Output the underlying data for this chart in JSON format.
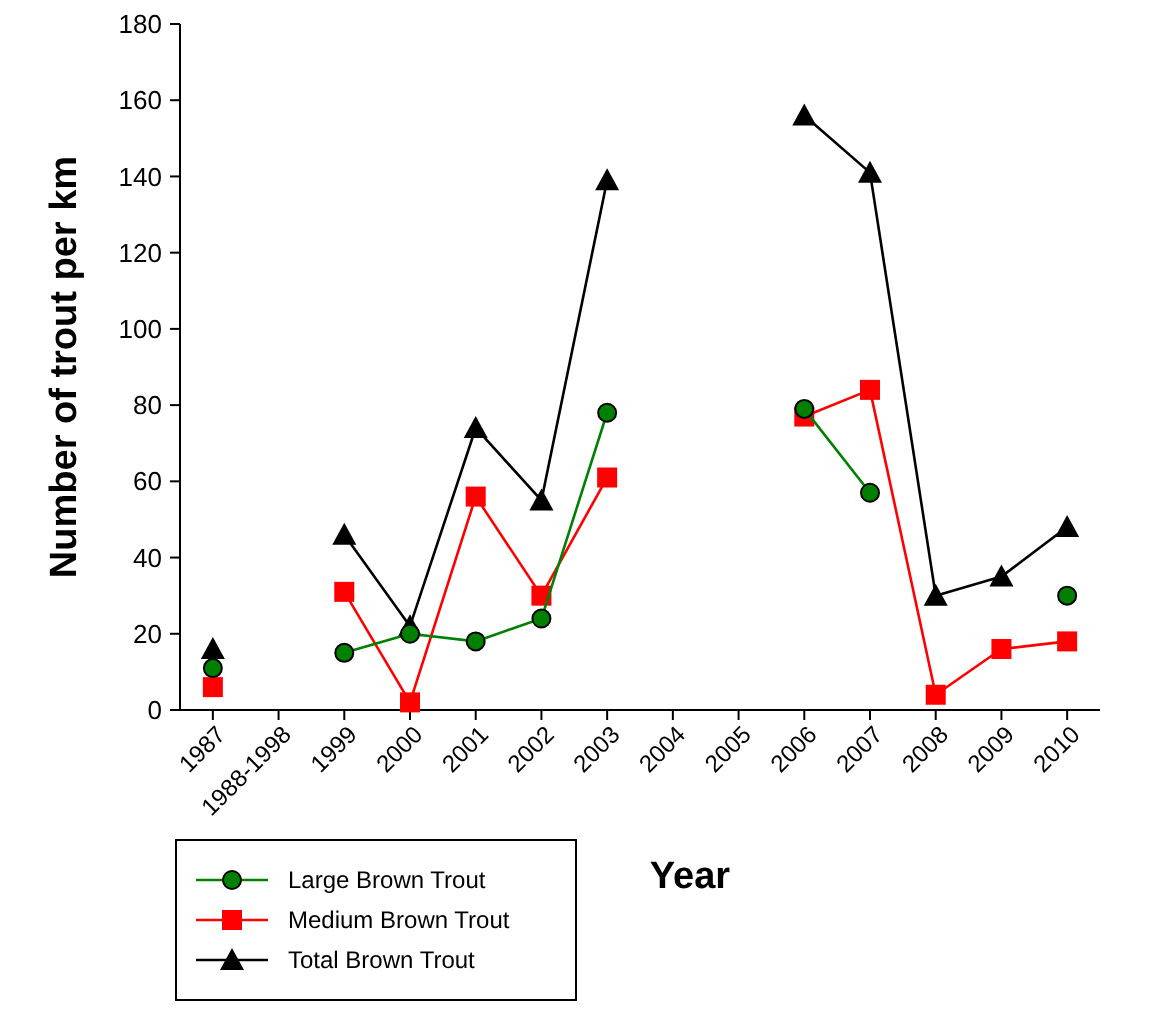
{
  "chart_data": {
    "type": "line",
    "xlabel": "Year",
    "ylabel": "Number of trout per km",
    "categories": [
      "1987",
      "1988-1998",
      "1999",
      "2000",
      "2001",
      "2002",
      "2003",
      "2004",
      "2005",
      "2006",
      "2007",
      "2008",
      "2009",
      "2010"
    ],
    "series": [
      {
        "name": "Large Brown Trout",
        "color": "#008000",
        "marker": "circle",
        "values": [
          11,
          null,
          15,
          20,
          18,
          24,
          78,
          null,
          null,
          79,
          57,
          null,
          null,
          30
        ]
      },
      {
        "name": "Medium Brown Trout",
        "color": "#ff0000",
        "marker": "square",
        "values": [
          6,
          null,
          31,
          2,
          56,
          30,
          61,
          null,
          null,
          77,
          84,
          4,
          16,
          18
        ]
      },
      {
        "name": "Total Brown Trout",
        "color": "#000000",
        "marker": "triangle",
        "values": [
          16,
          null,
          46,
          22,
          74,
          55,
          139,
          null,
          null,
          156,
          141,
          30,
          35,
          48
        ]
      }
    ],
    "ylim": [
      0,
      180
    ],
    "yticks": [
      0,
      20,
      40,
      60,
      80,
      100,
      120,
      140,
      160,
      180
    ],
    "grid": false,
    "legend": "bottom left"
  }
}
